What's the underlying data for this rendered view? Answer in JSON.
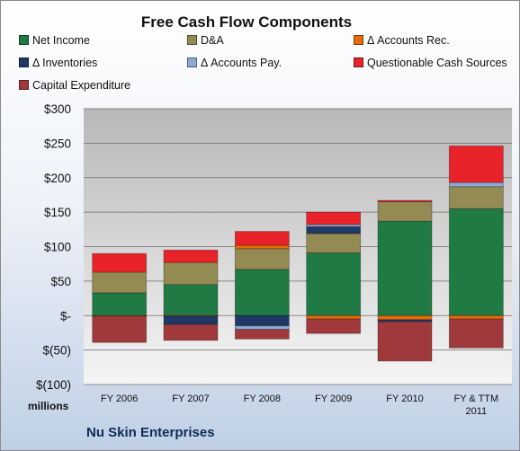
{
  "chart_data": {
    "type": "bar",
    "stacked": true,
    "title": "Free Cash Flow Components",
    "categories": [
      "FY 2006",
      "FY 2007",
      "FY 2008",
      "FY 2009",
      "FY 2010",
      "FY & TTM 2011"
    ],
    "y_tick_labels": [
      "$300",
      "$250",
      "$200",
      "$150",
      "$100",
      "$50",
      "$-",
      "$(50)",
      "$(100)"
    ],
    "ylim": [
      -100,
      300
    ],
    "y_unit_label": "millions",
    "grid": true,
    "legend_position": "top",
    "series": [
      {
        "name": "Net Income",
        "color": "#1f7a44",
        "values": [
          33,
          45,
          67,
          91,
          137,
          155
        ]
      },
      {
        "name": "D&A",
        "color": "#948a54",
        "values": [
          30,
          32,
          30,
          28,
          28,
          32
        ]
      },
      {
        "name": "Δ Accounts Rec.",
        "color": "#e26b0a",
        "values": [
          -1,
          -1,
          5,
          -5,
          -6,
          -5
        ]
      },
      {
        "name": "Δ Inventories",
        "color": "#1f3864",
        "values": [
          0,
          -12,
          -15,
          10,
          -3,
          0
        ]
      },
      {
        "name": "Δ Accounts Pay.",
        "color": "#8fa9d4",
        "values": [
          0,
          0,
          -5,
          3,
          0,
          6
        ]
      },
      {
        "name": "Questionable Cash Sources",
        "color": "#e8232a",
        "values": [
          27,
          18,
          20,
          18,
          2,
          53
        ]
      },
      {
        "name": "Capital Expenditure",
        "color": "#a0393b",
        "values": [
          -38,
          -23,
          -14,
          -21,
          -57,
          -42
        ]
      }
    ]
  },
  "footer": {
    "company": "Nu Skin Enterprises"
  }
}
